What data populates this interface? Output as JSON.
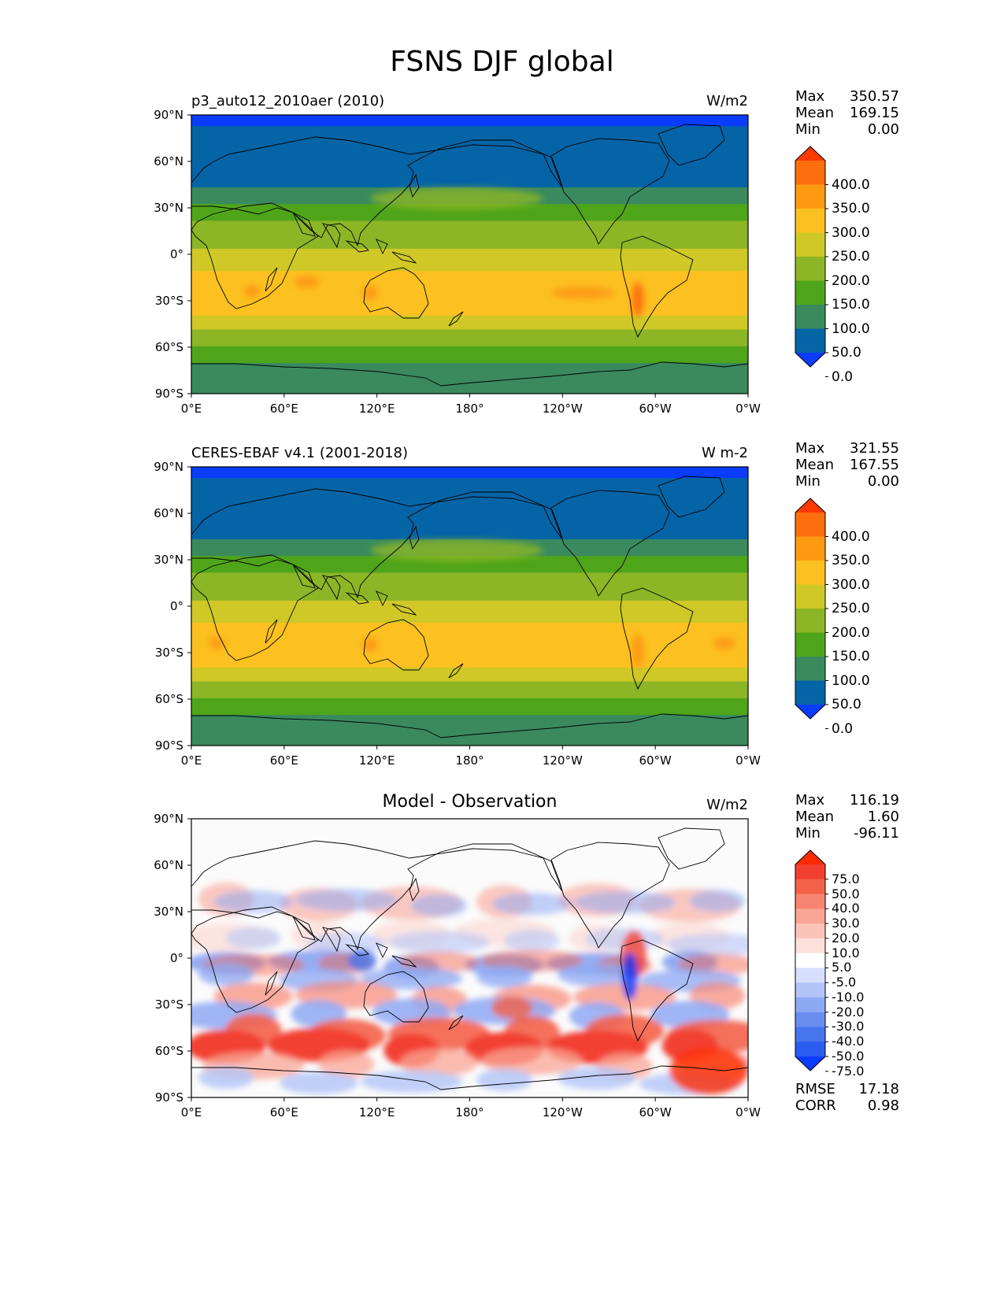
{
  "title": "FSNS DJF global",
  "panels": [
    {
      "id": "model",
      "left_title": "p3_auto12_2010aer (2010)",
      "center_title": "",
      "units": "W/m2",
      "stats": [
        {
          "label": "Max",
          "value": "350.57"
        },
        {
          "label": "Mean",
          "value": "169.15"
        },
        {
          "label": "Min",
          "value": "0.00"
        }
      ],
      "colorbar": {
        "labels": [
          "400.0",
          "350.0",
          "300.0",
          "250.0",
          "200.0",
          "150.0",
          "100.0",
          "50.0",
          "0.0"
        ],
        "colors": [
          "#0a3cff",
          "#0564a6",
          "#3a8a5e",
          "#4fa51a",
          "#8cb626",
          "#cfc826",
          "#fcc020",
          "#fd9a12",
          "#fd6e0e",
          "#fe3a00"
        ]
      }
    },
    {
      "id": "obs",
      "left_title": "CERES-EBAF v4.1 (2001-2018)",
      "center_title": "",
      "units": "W m-2",
      "stats": [
        {
          "label": "Max",
          "value": "321.55"
        },
        {
          "label": "Mean",
          "value": "167.55"
        },
        {
          "label": "Min",
          "value": "0.00"
        }
      ],
      "colorbar": {
        "labels": [
          "400.0",
          "350.0",
          "300.0",
          "250.0",
          "200.0",
          "150.0",
          "100.0",
          "50.0",
          "0.0"
        ],
        "colors": [
          "#0a3cff",
          "#0564a6",
          "#3a8a5e",
          "#4fa51a",
          "#8cb626",
          "#cfc826",
          "#fcc020",
          "#fd9a12",
          "#fd6e0e",
          "#fe3a00"
        ]
      }
    },
    {
      "id": "diff",
      "left_title": "",
      "center_title": "Model - Observation",
      "units": "W/m2",
      "stats": [
        {
          "label": "Max",
          "value": "116.19"
        },
        {
          "label": "Mean",
          "value": "1.60"
        },
        {
          "label": "Min",
          "value": "-96.11"
        }
      ],
      "extra_stats": [
        {
          "label": "RMSE",
          "value": "17.18"
        },
        {
          "label": "CORR",
          "value": "0.98"
        }
      ],
      "colorbar": {
        "labels": [
          "75.0",
          "50.0",
          "40.0",
          "30.0",
          "20.0",
          "10.0",
          "5.0",
          "-5.0",
          "-10.0",
          "-20.0",
          "-30.0",
          "-40.0",
          "-50.0",
          "-75.0"
        ],
        "colors": [
          "#0a3cff",
          "#2a5cf0",
          "#4775ec",
          "#6a8ef0",
          "#8ea9f4",
          "#b2c4f8",
          "#d6e0fc",
          "#ffffff",
          "#fde0da",
          "#fcc4b8",
          "#f9a696",
          "#f78470",
          "#f4624a",
          "#f24030",
          "#fe2a00"
        ]
      }
    }
  ],
  "axes": {
    "x_ticks": [
      "0°E",
      "60°E",
      "120°E",
      "180°",
      "120°W",
      "60°W",
      "0°W"
    ],
    "y_ticks": [
      "90°N",
      "60°N",
      "30°N",
      "0°",
      "30°S",
      "60°S",
      "90°S"
    ]
  }
}
